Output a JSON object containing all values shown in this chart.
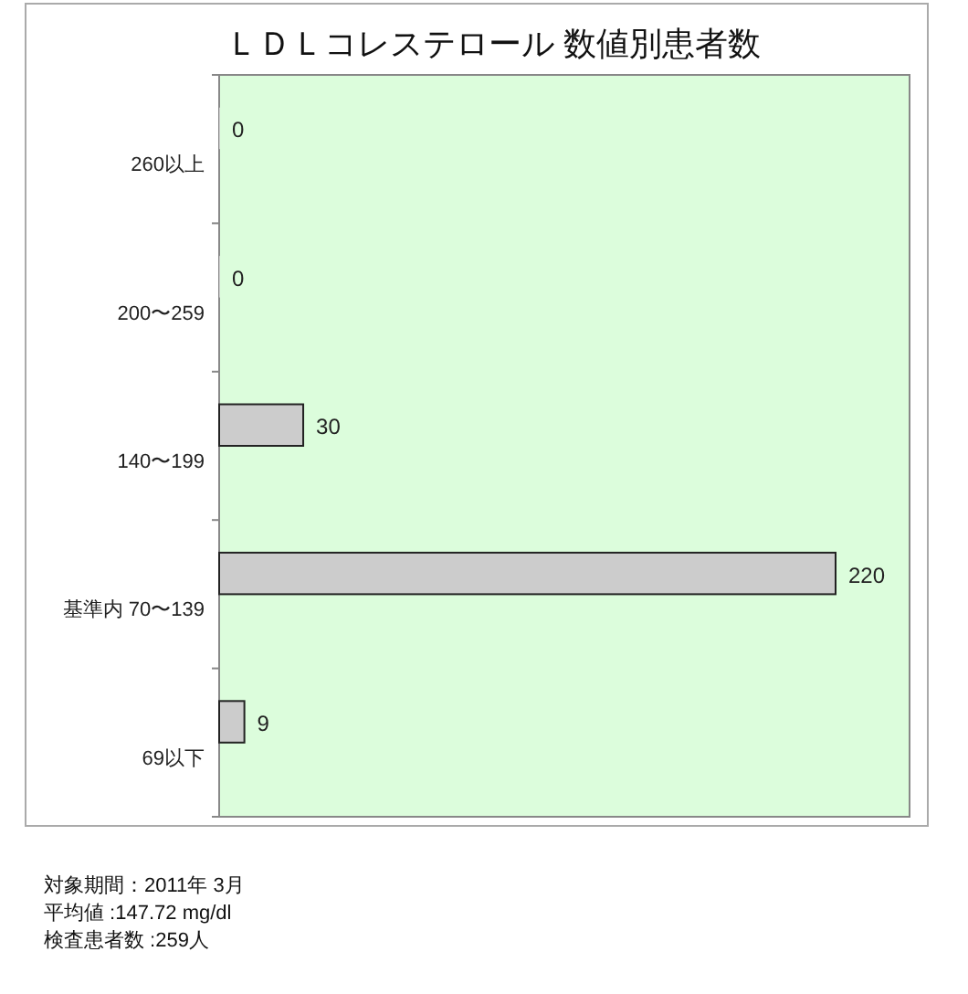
{
  "chart_data": {
    "type": "bar",
    "orientation": "horizontal",
    "title": "ＬＤＬコレステロール 数値別患者数",
    "categories": [
      "260以上",
      "200〜259",
      "140〜199",
      "基準内 70〜139",
      "69以下"
    ],
    "values": [
      0,
      0,
      30,
      220,
      9
    ],
    "color": "#cccccc",
    "data_labels": true,
    "tick_labels": "y",
    "grid": false,
    "annotations": [
      "対象期間：2011年 3月",
      "平均値 :147.72 mg/dl",
      "検査患者数 :259人"
    ]
  }
}
